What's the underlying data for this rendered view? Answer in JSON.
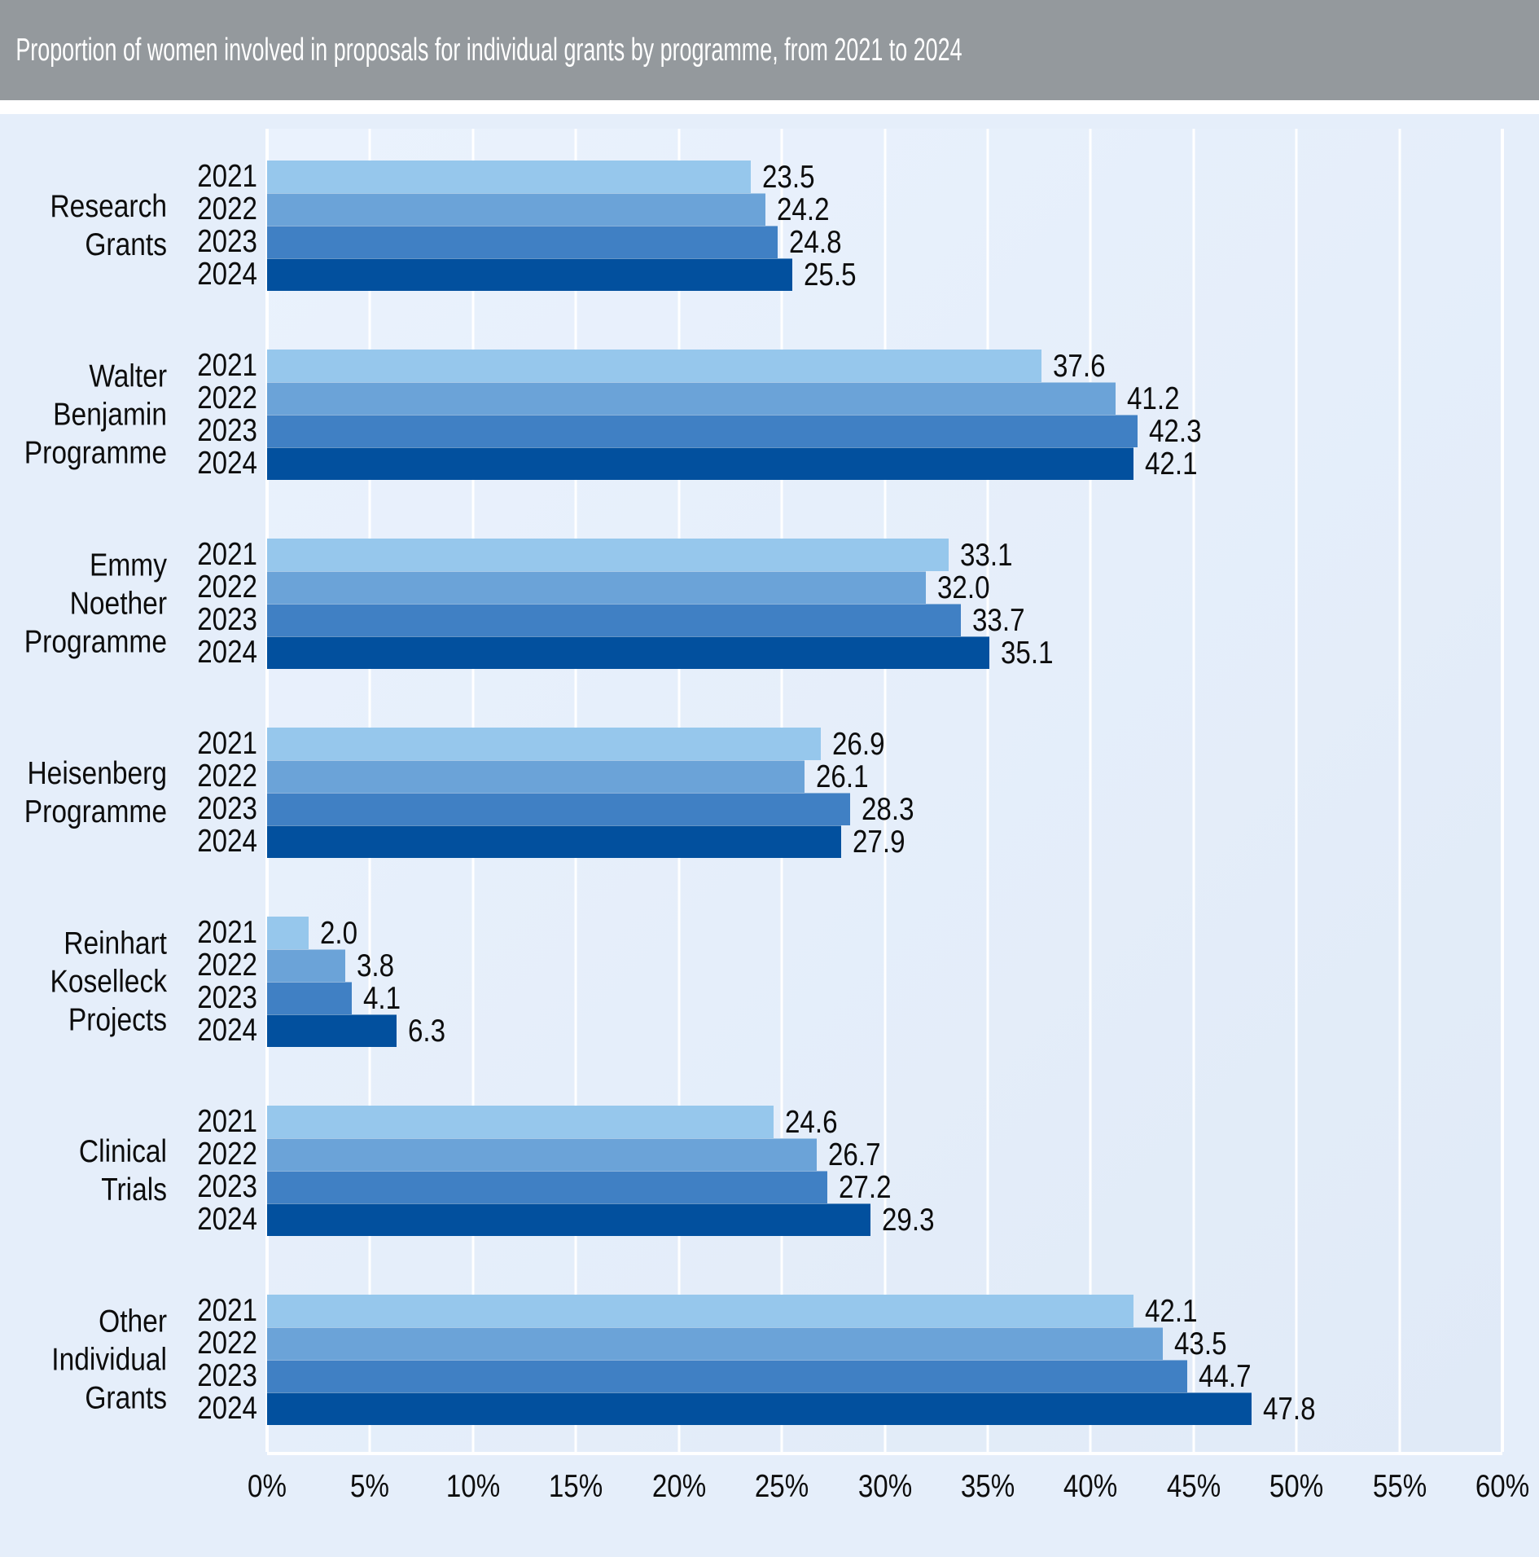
{
  "header": {
    "title": "Proportion of women involved in proposals for individual grants by programme, from 2021 to 2024"
  },
  "colors": {
    "header_bg": "#94999d",
    "title_color": "#ffffff",
    "canvas_bg": "#e5eefa",
    "plot_bg_light": "#eaf2fd",
    "plot_bg_dark": "#e0eaf7",
    "grid_color": "#ffffff",
    "text_color": "#0d0d0d",
    "series_colors": [
      "#96c7ec",
      "#6ba3d8",
      "#4080c4",
      "#02509e"
    ]
  },
  "chart_data": {
    "type": "bar",
    "orientation": "horizontal",
    "title": "Proportion of women involved in proposals for individual grants by programme, from 2021 to 2024",
    "xlabel": "",
    "ylabel": "",
    "xlim": [
      0,
      60
    ],
    "grid": true,
    "value_labels": "outside-end, one decimal",
    "categories": [
      "Research Grants",
      "Walter Benjamin Programme",
      "Emmy Noether Programme",
      "Heisenberg Programme",
      "Reinhart Koselleck Projects",
      "Clinical Trials",
      "Other Individual Grants"
    ],
    "series": [
      {
        "name": "2021",
        "values": [
          23.5,
          37.6,
          33.1,
          26.9,
          2.0,
          24.6,
          42.1
        ]
      },
      {
        "name": "2022",
        "values": [
          24.2,
          41.2,
          32.0,
          26.1,
          3.8,
          26.7,
          43.5
        ]
      },
      {
        "name": "2023",
        "values": [
          24.8,
          42.3,
          33.7,
          28.3,
          4.1,
          27.2,
          44.7
        ]
      },
      {
        "name": "2024",
        "values": [
          25.5,
          42.1,
          35.1,
          27.9,
          6.3,
          29.3,
          47.8
        ]
      }
    ],
    "x_axis": {
      "min": 0,
      "max": 60,
      "step": 5,
      "ticks": [
        "0%",
        "5%",
        "10%",
        "15%",
        "20%",
        "25%",
        "30%",
        "35%",
        "40%",
        "45%",
        "50%",
        "55%",
        "60%"
      ]
    }
  }
}
